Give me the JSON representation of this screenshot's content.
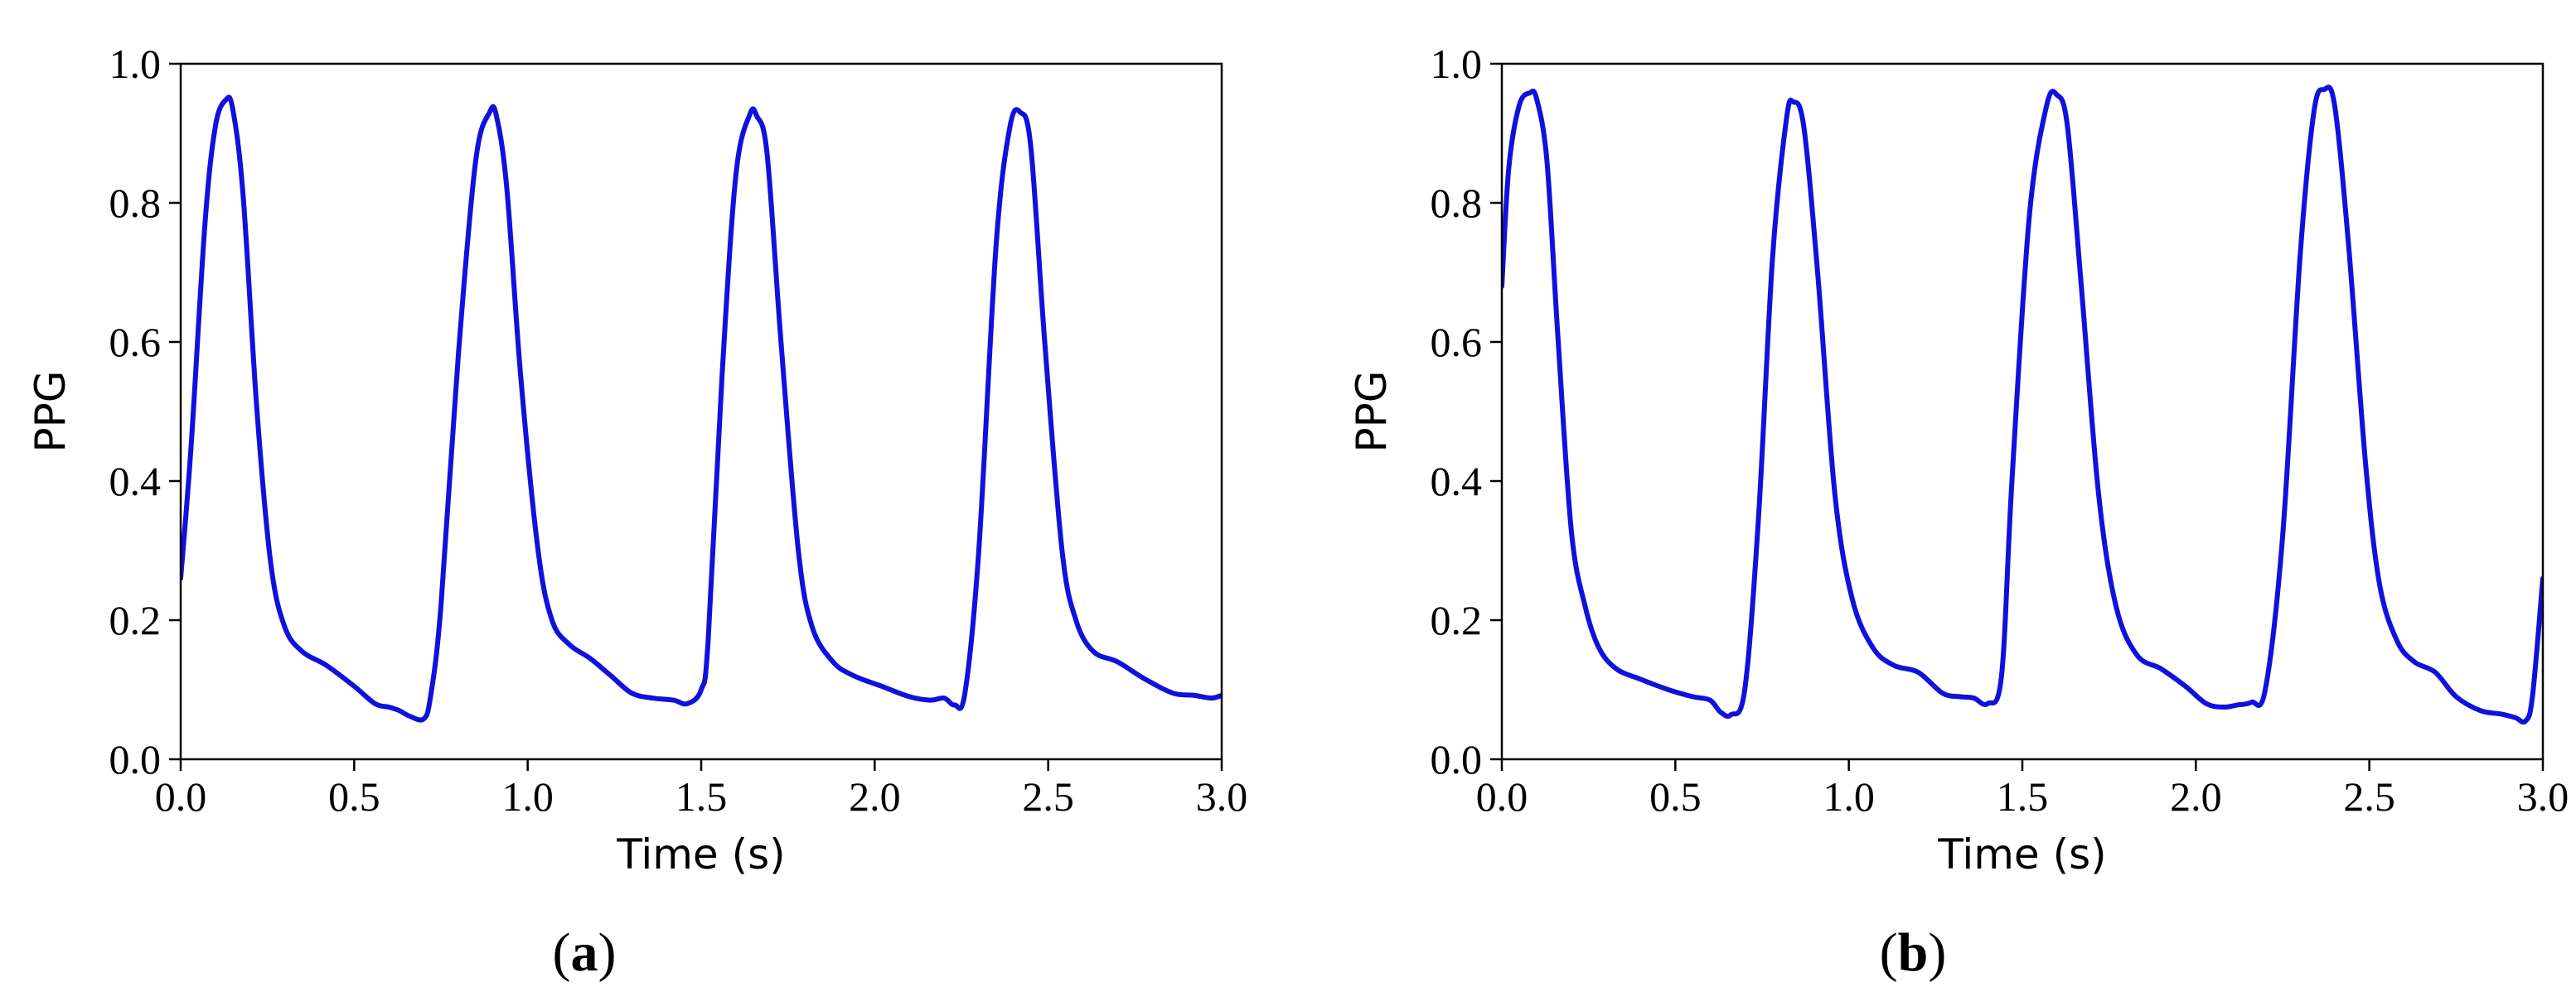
{
  "chart_data": [
    {
      "type": "line",
      "panel_label": "a",
      "xlabel": "Time (s)",
      "ylabel": "PPG",
      "xlim": [
        0.0,
        3.0
      ],
      "ylim": [
        0.0,
        1.0
      ],
      "xticks": [
        "0.0",
        "0.5",
        "1.0",
        "1.5",
        "2.0",
        "2.5",
        "3.0"
      ],
      "yticks": [
        "0.0",
        "0.2",
        "0.4",
        "0.6",
        "0.8",
        "1.0"
      ],
      "grid": false,
      "line_color": "#1111dd",
      "series": [
        {
          "x": [
            0.0,
            0.03,
            0.07,
            0.1,
            0.13,
            0.15,
            0.18,
            0.22,
            0.26,
            0.3,
            0.35,
            0.42,
            0.5,
            0.56,
            0.6,
            0.63,
            0.66,
            0.7,
            0.72,
            0.75,
            0.8,
            0.85,
            0.89,
            0.91,
            0.94,
            0.98,
            1.03,
            1.07,
            1.12,
            1.18,
            1.24,
            1.3,
            1.36,
            1.42,
            1.46,
            1.5,
            1.52,
            1.56,
            1.6,
            1.64,
            1.66,
            1.69,
            1.73,
            1.78,
            1.82,
            1.88,
            1.94,
            2.02,
            2.1,
            2.16,
            2.2,
            2.23,
            2.26,
            2.3,
            2.35,
            2.39,
            2.42,
            2.45,
            2.49,
            2.54,
            2.58,
            2.63,
            2.7,
            2.78,
            2.86,
            2.92,
            2.97,
            3.0
          ],
          "y": [
            0.26,
            0.45,
            0.77,
            0.91,
            0.948,
            0.935,
            0.81,
            0.5,
            0.28,
            0.19,
            0.155,
            0.135,
            0.105,
            0.08,
            0.075,
            0.07,
            0.062,
            0.058,
            0.09,
            0.22,
            0.58,
            0.86,
            0.93,
            0.925,
            0.82,
            0.55,
            0.3,
            0.2,
            0.165,
            0.145,
            0.12,
            0.095,
            0.088,
            0.085,
            0.08,
            0.1,
            0.17,
            0.55,
            0.84,
            0.927,
            0.925,
            0.87,
            0.6,
            0.3,
            0.19,
            0.14,
            0.12,
            0.105,
            0.09,
            0.085,
            0.088,
            0.078,
            0.095,
            0.3,
            0.74,
            0.91,
            0.93,
            0.88,
            0.6,
            0.3,
            0.2,
            0.155,
            0.14,
            0.115,
            0.095,
            0.092,
            0.088,
            0.092
          ]
        }
      ]
    },
    {
      "type": "line",
      "panel_label": "b",
      "xlabel": "Time (s)",
      "ylabel": "PPG",
      "xlim": [
        0.0,
        3.0
      ],
      "ylim": [
        0.0,
        1.0
      ],
      "xticks": [
        "0.0",
        "0.5",
        "1.0",
        "1.5",
        "2.0",
        "2.5",
        "3.0"
      ],
      "yticks": [
        "0.0",
        "0.2",
        "0.4",
        "0.6",
        "0.8",
        "1.0"
      ],
      "grid": false,
      "line_color": "#1111dd",
      "series": [
        {
          "x": [
            0.0,
            0.02,
            0.05,
            0.08,
            0.1,
            0.13,
            0.16,
            0.2,
            0.24,
            0.28,
            0.33,
            0.4,
            0.48,
            0.55,
            0.6,
            0.63,
            0.66,
            0.7,
            0.74,
            0.78,
            0.82,
            0.84,
            0.87,
            0.91,
            0.96,
            1.01,
            1.07,
            1.13,
            1.2,
            1.27,
            1.32,
            1.36,
            1.4,
            1.44,
            1.47,
            1.52,
            1.57,
            1.6,
            1.63,
            1.67,
            1.72,
            1.77,
            1.83,
            1.9,
            1.97,
            2.03,
            2.08,
            2.12,
            2.16,
            2.2,
            2.25,
            2.3,
            2.34,
            2.37,
            2.4,
            2.44,
            2.49,
            2.53,
            2.58,
            2.63,
            2.69,
            2.75,
            2.82,
            2.88,
            2.92,
            2.95,
            2.97,
            3.0
          ],
          "y": [
            0.68,
            0.85,
            0.94,
            0.958,
            0.95,
            0.86,
            0.62,
            0.33,
            0.22,
            0.16,
            0.13,
            0.115,
            0.1,
            0.09,
            0.085,
            0.068,
            0.064,
            0.1,
            0.35,
            0.72,
            0.92,
            0.945,
            0.91,
            0.7,
            0.38,
            0.23,
            0.16,
            0.135,
            0.125,
            0.095,
            0.09,
            0.088,
            0.08,
            0.12,
            0.4,
            0.78,
            0.94,
            0.955,
            0.91,
            0.68,
            0.38,
            0.22,
            0.15,
            0.13,
            0.105,
            0.08,
            0.075,
            0.078,
            0.082,
            0.1,
            0.32,
            0.72,
            0.93,
            0.963,
            0.94,
            0.74,
            0.42,
            0.25,
            0.17,
            0.14,
            0.125,
            0.09,
            0.07,
            0.065,
            0.06,
            0.055,
            0.09,
            0.26
          ]
        }
      ]
    }
  ],
  "captions": [
    "a",
    "b"
  ]
}
